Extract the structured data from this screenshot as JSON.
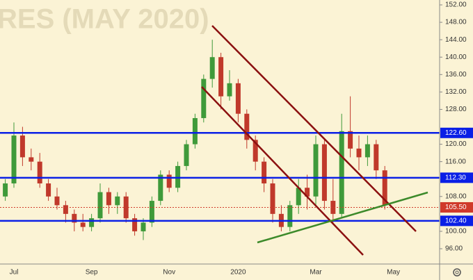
{
  "chart_data": {
    "type": "candlestick",
    "title": "RES (MAY 2020)",
    "categories": [
      null,
      "Jul",
      null,
      null,
      null,
      null,
      null,
      null,
      null,
      null,
      "Sep",
      null,
      null,
      null,
      null,
      null,
      null,
      null,
      null,
      "Nov",
      null,
      null,
      null,
      null,
      null,
      null,
      null,
      "2020",
      null,
      null,
      null,
      null,
      null,
      null,
      null,
      null,
      "Mar",
      null,
      null,
      null,
      null,
      null,
      null,
      null,
      null,
      "May"
    ],
    "open": [
      108,
      111,
      122,
      117,
      116,
      111,
      108,
      106,
      104,
      102,
      101,
      103,
      109,
      106,
      108,
      103,
      100,
      102,
      107,
      113,
      110,
      115,
      120,
      126,
      135,
      140,
      131,
      134,
      127,
      121,
      116,
      111,
      104,
      101,
      106,
      110,
      108,
      120,
      107,
      104,
      123,
      119,
      117,
      120,
      114,
      null
    ],
    "high": [
      112,
      125,
      124,
      119,
      118,
      112,
      110,
      107,
      105,
      104,
      104,
      111,
      110,
      109,
      109,
      104,
      103,
      108,
      114,
      114,
      116,
      121,
      127,
      136,
      144,
      141,
      137,
      135,
      128,
      122,
      117,
      112,
      106,
      107,
      112,
      113,
      122,
      121,
      112,
      127,
      131,
      122,
      122,
      121,
      115,
      null
    ],
    "low": [
      107,
      110,
      115,
      114,
      110,
      107,
      105,
      102,
      100,
      100,
      100,
      102,
      104,
      104,
      102,
      99,
      98,
      101,
      106,
      109,
      109,
      114,
      119,
      125,
      133,
      128,
      130,
      125,
      119,
      114,
      109,
      102,
      100,
      100,
      104,
      105,
      106,
      105,
      102,
      103,
      117,
      114,
      115,
      112,
      105,
      null
    ],
    "close": [
      111,
      122,
      117,
      116,
      111,
      108,
      106,
      104,
      102,
      101,
      103,
      109,
      106,
      108,
      103,
      100,
      102,
      107,
      113,
      110,
      115,
      120,
      126,
      135,
      140,
      131,
      134,
      127,
      121,
      116,
      111,
      104,
      101,
      106,
      110,
      108,
      120,
      107,
      104,
      123,
      119,
      117,
      120,
      114,
      106,
      null
    ],
    "up_color": "#3f9a3a",
    "down_color": "#c0392b",
    "ylim": [
      92.49,
      153.12
    ],
    "yticks": [
      {
        "value": 96,
        "label": "96.00"
      },
      {
        "value": 100,
        "label": "100.00"
      },
      {
        "value": 108,
        "label": "108.00"
      },
      {
        "value": 116,
        "label": "116.00"
      },
      {
        "value": 120,
        "label": "120.00"
      },
      {
        "value": 128,
        "label": "128.00"
      },
      {
        "value": 132,
        "label": "132.00"
      },
      {
        "value": 136,
        "label": "136.00"
      },
      {
        "value": 140,
        "label": "140.00"
      },
      {
        "value": 144,
        "label": "144.00"
      },
      {
        "value": 148,
        "label": "148.00"
      },
      {
        "value": 152,
        "label": "152.00"
      }
    ],
    "levels": [
      {
        "value": 122.6,
        "label": "122.60",
        "color": "#0a1fe6"
      },
      {
        "value": 112.3,
        "label": "112.30",
        "color": "#0a1fe6"
      },
      {
        "value": 102.4,
        "label": "102.40",
        "color": "#0a1fe6"
      }
    ],
    "price_line": {
      "value": 105.5,
      "label": "105.50",
      "color": "#d03a2a"
    }
  }
}
